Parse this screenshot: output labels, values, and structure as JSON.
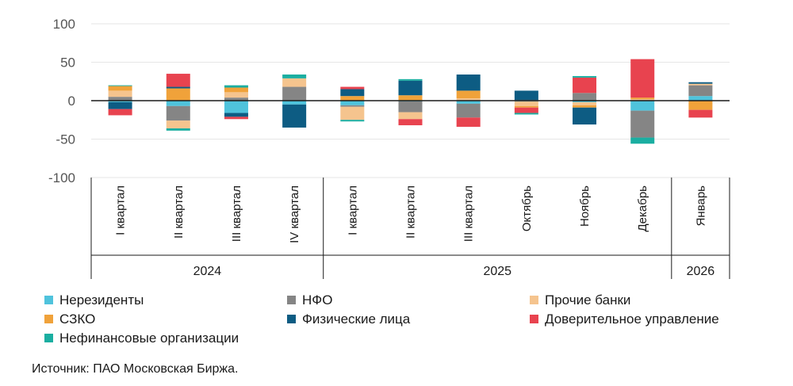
{
  "chart_data": {
    "type": "stacked-bar",
    "ylim": [
      -100,
      100
    ],
    "yticks": [
      100,
      50,
      0,
      -50,
      -100
    ],
    "y_tick_labels": [
      "100",
      "50",
      "0",
      "-50",
      "-100"
    ],
    "grid": true,
    "legend_position": "bottom",
    "categories": [
      "I квартал",
      "II квартал",
      "III квартал",
      "IV квартал",
      "I квартал",
      "II квартал",
      "III квартал",
      "Октябрь",
      "Ноябрь",
      "Декабрь",
      "Январь"
    ],
    "year_groups": [
      {
        "label": "2024",
        "count": 4
      },
      {
        "label": "2025",
        "count": 6
      },
      {
        "label": "2026",
        "count": 1
      }
    ],
    "series": [
      {
        "key": "nonres",
        "name": "Нерезиденты",
        "color": "#4fc3dc",
        "values": [
          -2,
          -7,
          -16,
          -5,
          -6,
          -1,
          -4,
          -1,
          -2,
          -13,
          6
        ]
      },
      {
        "key": "nfo",
        "name": "НФО",
        "color": "#858585",
        "values": [
          5,
          -19,
          4,
          18,
          -2,
          -14,
          -18,
          1,
          10,
          -35,
          14
        ]
      },
      {
        "key": "other_banks",
        "name": "Прочие банки",
        "color": "#f5c48e",
        "values": [
          8,
          -10,
          7,
          11,
          -17,
          -9,
          3,
          -6,
          -4,
          2,
          2
        ]
      },
      {
        "key": "szko",
        "name": "СЗКО",
        "color": "#f0a23a",
        "values": [
          6,
          16,
          6,
          0,
          6,
          7,
          10,
          -2,
          -3,
          2,
          -12
        ]
      },
      {
        "key": "individuals",
        "name": "Физические лица",
        "color": "#0d5c83",
        "values": [
          -9,
          2,
          -5,
          -30,
          9,
          19,
          21,
          12,
          -22,
          0,
          2
        ]
      },
      {
        "key": "trust",
        "name": "Доверительное управление",
        "color": "#e8434f",
        "values": [
          -8,
          17,
          -3,
          0,
          3,
          -8,
          -12,
          -7,
          20,
          50,
          -10
        ]
      },
      {
        "key": "nonfin",
        "name": "Нефинансовые организации",
        "color": "#1aaea1",
        "values": [
          1,
          -3,
          3,
          5,
          -2,
          2,
          0,
          -2,
          2,
          -8,
          0
        ]
      }
    ]
  },
  "source": "Источник: ПАО Московская Биржа."
}
